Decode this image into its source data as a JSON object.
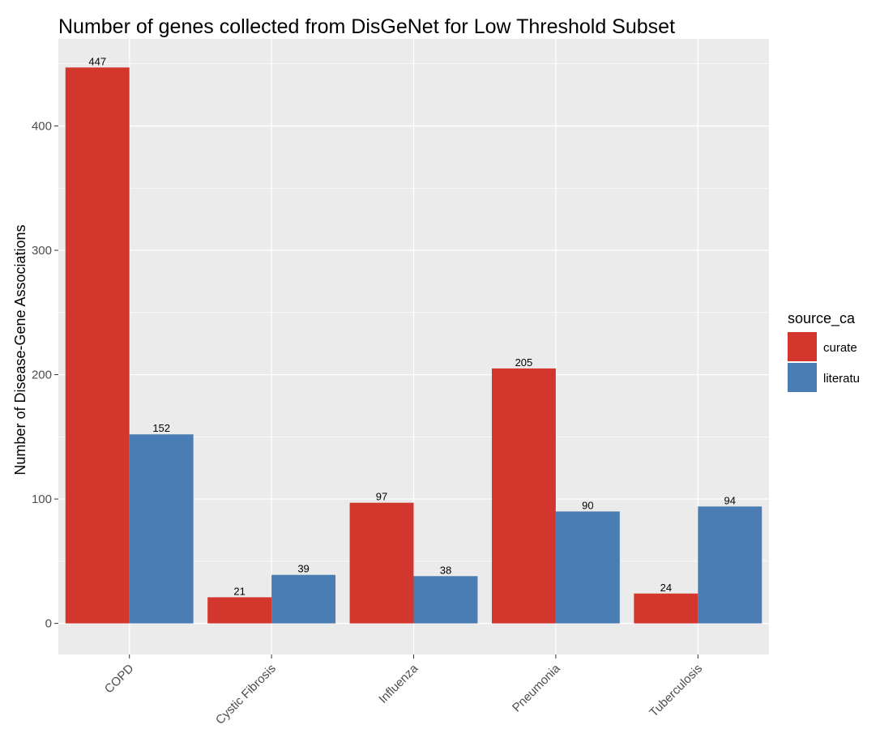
{
  "chart_data": {
    "type": "bar",
    "title": "Number of genes collected from DisGeNet for Low Threshold Subset",
    "xlabel": "",
    "ylabel": "Number of Disease-Gene Associations",
    "categories": [
      "COPD",
      "Cystic Fibrosis",
      "Influenza",
      "Pneumonia",
      "Tuberculosis"
    ],
    "series": [
      {
        "name": "curated",
        "legend_visible": "curate",
        "color": "#D3362D",
        "values": [
          447,
          21,
          97,
          205,
          24
        ]
      },
      {
        "name": "literature",
        "legend_visible": "literatu",
        "color": "#4A7DB3",
        "values": [
          152,
          39,
          38,
          90,
          94
        ]
      }
    ],
    "legend_title": "source_ca",
    "legend_position": "right",
    "ylim": [
      -25,
      470
    ],
    "y_ticks": [
      0,
      100,
      200,
      300,
      400
    ],
    "grid": true,
    "panel_background": "#EBEBEB",
    "grid_color": "#FFFFFF"
  }
}
